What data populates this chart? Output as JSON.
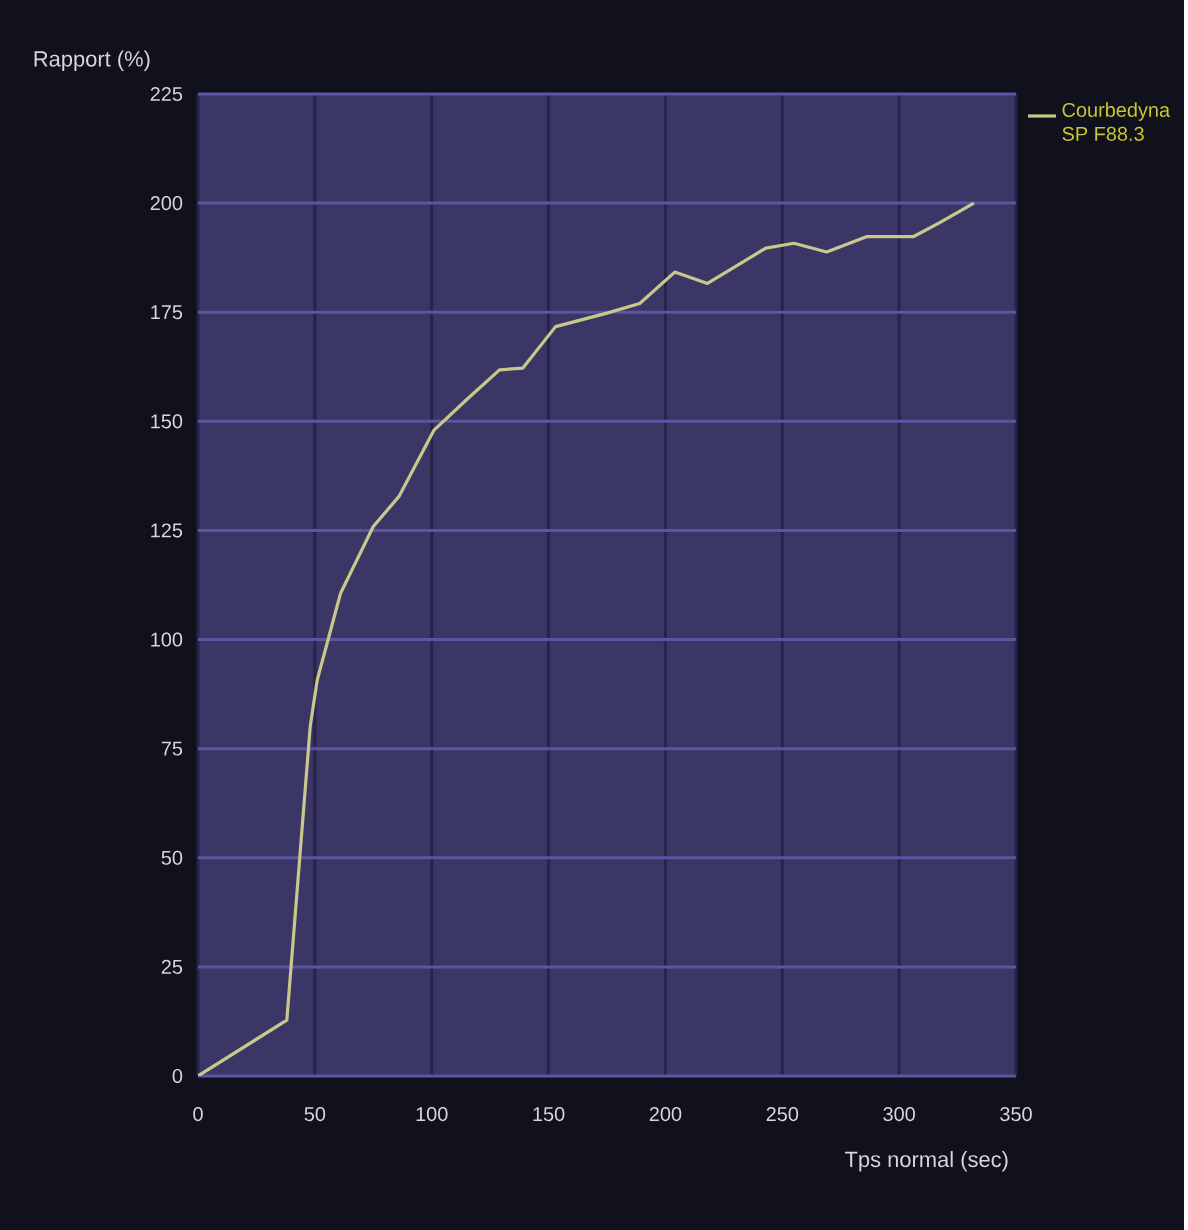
{
  "chart_data": {
    "type": "line",
    "xlabel": "Tps normal (sec)",
    "ylabel": "Rapport (%)",
    "xlim": [
      0,
      350
    ],
    "xticks": [
      0,
      50,
      100,
      150,
      200,
      250,
      300,
      350
    ],
    "ylim": [
      0,
      225
    ],
    "yticks": [
      0,
      25,
      50,
      75,
      100,
      125,
      150,
      175,
      200,
      225
    ],
    "grid": true,
    "legend": "right",
    "series": [
      {
        "name": "Courbedyna SP F88.3",
        "color": "#c8c88c",
        "x": [
          0,
          38,
          48,
          51,
          61,
          75,
          86,
          101,
          115,
          129,
          139,
          153,
          175,
          189,
          204,
          218,
          243,
          255,
          269,
          286,
          306,
          317,
          332
        ],
        "values": [
          0,
          12.8,
          80,
          90.7,
          110.6,
          125.9,
          132.8,
          148,
          155,
          161.8,
          162.2,
          171.7,
          174.8,
          177,
          184.2,
          181.6,
          189.7,
          190.8,
          188.8,
          192.3,
          192.3,
          195.4,
          200
        ]
      }
    ]
  }
}
